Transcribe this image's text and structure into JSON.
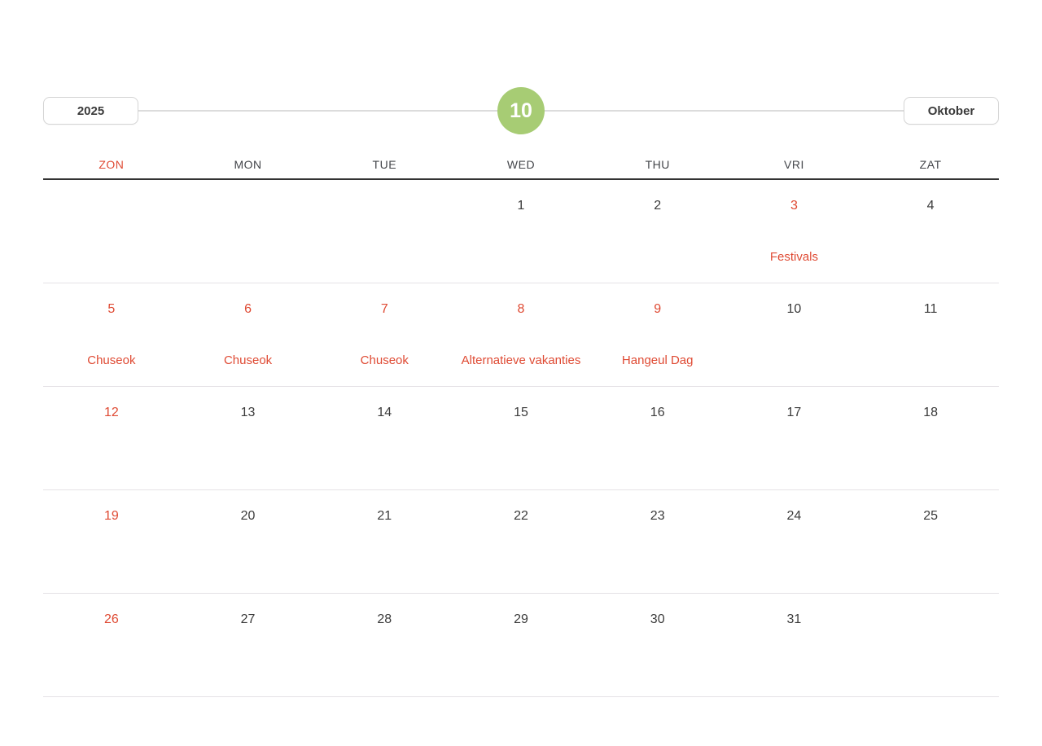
{
  "header": {
    "year_label": "2025",
    "month_number": "10",
    "month_label": "Oktober",
    "circle_color": "#a7cc74",
    "accent_red": "#df4a33"
  },
  "weekdays": [
    {
      "label": "ZON",
      "red": true
    },
    {
      "label": "MON",
      "red": false
    },
    {
      "label": "TUE",
      "red": false
    },
    {
      "label": "WED",
      "red": false
    },
    {
      "label": "THU",
      "red": false
    },
    {
      "label": "VRI",
      "red": false
    },
    {
      "label": "ZAT",
      "red": false
    }
  ],
  "weeks": [
    [
      {
        "day": "",
        "holiday": "",
        "red": false
      },
      {
        "day": "",
        "holiday": "",
        "red": false
      },
      {
        "day": "",
        "holiday": "",
        "red": false
      },
      {
        "day": "1",
        "holiday": "",
        "red": false
      },
      {
        "day": "2",
        "holiday": "",
        "red": false
      },
      {
        "day": "3",
        "holiday": "Festivals",
        "red": true
      },
      {
        "day": "4",
        "holiday": "",
        "red": false
      }
    ],
    [
      {
        "day": "5",
        "holiday": "Chuseok",
        "red": true
      },
      {
        "day": "6",
        "holiday": "Chuseok",
        "red": true
      },
      {
        "day": "7",
        "holiday": "Chuseok",
        "red": true
      },
      {
        "day": "8",
        "holiday": "Alternatieve vakanties",
        "red": true
      },
      {
        "day": "9",
        "holiday": "Hangeul Dag",
        "red": true
      },
      {
        "day": "10",
        "holiday": "",
        "red": false
      },
      {
        "day": "11",
        "holiday": "",
        "red": false
      }
    ],
    [
      {
        "day": "12",
        "holiday": "",
        "red": true
      },
      {
        "day": "13",
        "holiday": "",
        "red": false
      },
      {
        "day": "14",
        "holiday": "",
        "red": false
      },
      {
        "day": "15",
        "holiday": "",
        "red": false
      },
      {
        "day": "16",
        "holiday": "",
        "red": false
      },
      {
        "day": "17",
        "holiday": "",
        "red": false
      },
      {
        "day": "18",
        "holiday": "",
        "red": false
      }
    ],
    [
      {
        "day": "19",
        "holiday": "",
        "red": true
      },
      {
        "day": "20",
        "holiday": "",
        "red": false
      },
      {
        "day": "21",
        "holiday": "",
        "red": false
      },
      {
        "day": "22",
        "holiday": "",
        "red": false
      },
      {
        "day": "23",
        "holiday": "",
        "red": false
      },
      {
        "day": "24",
        "holiday": "",
        "red": false
      },
      {
        "day": "25",
        "holiday": "",
        "red": false
      }
    ],
    [
      {
        "day": "26",
        "holiday": "",
        "red": true
      },
      {
        "day": "27",
        "holiday": "",
        "red": false
      },
      {
        "day": "28",
        "holiday": "",
        "red": false
      },
      {
        "day": "29",
        "holiday": "",
        "red": false
      },
      {
        "day": "30",
        "holiday": "",
        "red": false
      },
      {
        "day": "31",
        "holiday": "",
        "red": false
      },
      {
        "day": "",
        "holiday": "",
        "red": false
      }
    ]
  ]
}
